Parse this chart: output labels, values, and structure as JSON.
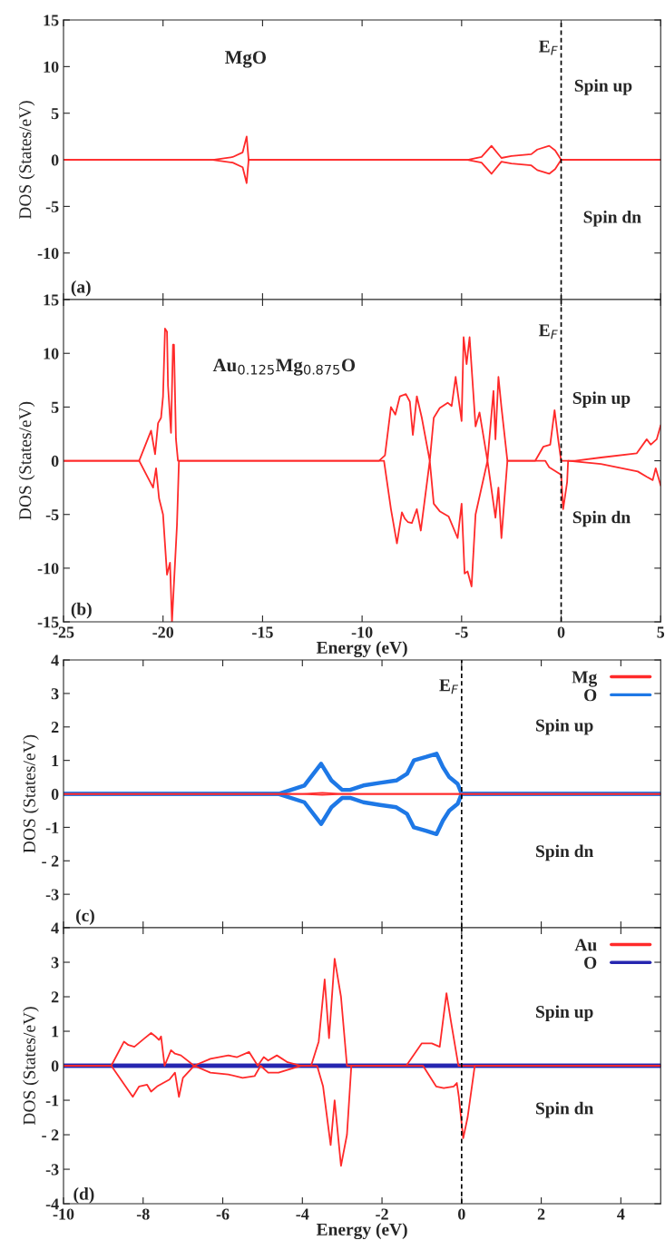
{
  "chart_data": [
    {
      "type": "line",
      "ylabel": "DOS (States/eV)",
      "xlim": [
        -25,
        5
      ],
      "xticks": [
        -25,
        -20,
        -15,
        -10,
        -5,
        0,
        5
      ],
      "ylim": [
        -15,
        15
      ],
      "yticks": [
        15,
        10,
        5,
        0,
        -5,
        -10,
        {
          "value": -15,
          "label": null
        }
      ],
      "tick_labels": "y",
      "grid": false,
      "legend": false,
      "ref_lines": [
        {
          "axis": "x",
          "value": 0,
          "label": "E$_{F}$",
          "color": "#000000",
          "line_style": "dashed"
        }
      ],
      "annotations": [
        "MgO",
        "Spin up",
        "Spin dn",
        "(a)"
      ],
      "series": [
        {
          "color": "#ff2a2a",
          "x": [
            -25,
            -17.5,
            -16.5,
            -16.0,
            -15.8,
            -15.7,
            -4.7,
            -4.0,
            -3.5,
            -3.0,
            -2.5,
            -1.5,
            -1.2,
            -0.6,
            -0.3,
            0,
            5
          ],
          "values": [
            0,
            0,
            0.3,
            0.8,
            2.5,
            0,
            0,
            0.3,
            1.5,
            0.2,
            0.4,
            0.6,
            1.1,
            1.5,
            1.0,
            0,
            0
          ]
        },
        {
          "color": "#ff2a2a",
          "x": [
            -25,
            -17.5,
            -16.5,
            -16.0,
            -15.8,
            -15.7,
            -4.7,
            -4.0,
            -3.5,
            -3.0,
            -2.5,
            -1.5,
            -1.2,
            -0.6,
            -0.3,
            0,
            5
          ],
          "values": [
            0,
            0,
            -0.3,
            -0.8,
            -2.5,
            0,
            0,
            -0.3,
            -1.5,
            -0.2,
            -0.4,
            -0.6,
            -1.1,
            -1.5,
            -1.0,
            0,
            0
          ]
        }
      ]
    },
    {
      "type": "line",
      "xlabel": "Energy (eV)",
      "ylabel": "DOS (States/eV)",
      "xlim": [
        -25,
        5
      ],
      "xticks": [
        -25,
        -20,
        -15,
        -10,
        -5,
        0,
        5
      ],
      "ylim": [
        -15,
        15
      ],
      "yticks": [
        15,
        10,
        5,
        0,
        -5,
        -10,
        -15
      ],
      "grid": false,
      "legend": false,
      "ref_lines": [
        {
          "axis": "x",
          "value": 0,
          "label": "E$_{F}$",
          "color": "#000000",
          "line_style": "dashed"
        }
      ],
      "annotations": [
        "Au$_{0.125}$Mg$_{0.875}$O",
        "Spin up",
        "Spin dn",
        "(b)"
      ],
      "series": [
        {
          "color": "#ff2a2a",
          "x": [
            -25,
            -21.2,
            -20.6,
            -20.4,
            -20.25,
            -20.1,
            -20.0,
            -19.9,
            -19.8,
            -19.75,
            -19.6,
            -19.5,
            -19.45,
            -19.35,
            -19.25,
            -9.15,
            -8.85,
            -8.55,
            -8.33,
            -8.1,
            -7.8,
            -7.6,
            -7.45,
            -7.25,
            -7.0,
            -6.6,
            -6.4,
            -6.1,
            -5.7,
            -5.5,
            -5.3,
            -5.0,
            -4.9,
            -4.75,
            -4.6,
            -4.3,
            -4.1,
            -3.7,
            -3.4,
            -3.3,
            -3.15,
            -3.0,
            -2.7,
            -1.3,
            -0.9,
            -0.55,
            -0.33,
            -0.15,
            0,
            0.7,
            2.0,
            3.8,
            4.3,
            4.5,
            4.8,
            5.0
          ],
          "values": [
            0,
            0,
            2.8,
            0.6,
            3.5,
            4.0,
            6,
            12.3,
            12,
            7,
            2.6,
            10.8,
            10.8,
            2,
            0,
            0,
            0.5,
            5.0,
            4.3,
            6.0,
            6.2,
            5.5,
            2.4,
            6.0,
            4.0,
            0,
            4.0,
            4.9,
            5.4,
            5.1,
            7.8,
            3.7,
            11.5,
            9.0,
            11.5,
            3.2,
            4.5,
            0,
            6.5,
            2.0,
            7.8,
            5.0,
            0,
            0,
            1.3,
            1.5,
            4.7,
            2,
            0,
            0,
            0.3,
            0.7,
            2,
            1.5,
            2,
            3.3
          ]
        },
        {
          "color": "#ff2a2a",
          "x": [
            -25,
            -21.2,
            -20.5,
            -20.35,
            -20.2,
            -20.0,
            -19.8,
            -19.65,
            -19.55,
            -19.3,
            -19.2,
            -8.9,
            -8.55,
            -8.25,
            -8.0,
            -7.85,
            -7.7,
            -7.5,
            -7.25,
            -7.05,
            -6.6,
            -6.4,
            -6.1,
            -5.65,
            -5.2,
            -5.0,
            -4.85,
            -4.7,
            -4.5,
            -4.3,
            -3.7,
            -3.3,
            -3.15,
            -3.0,
            -2.7,
            -0.8,
            -0.6,
            0,
            0.1,
            0.3,
            0.35,
            2.0,
            3.85,
            4.3,
            4.6,
            4.75,
            5.0
          ],
          "values": [
            0,
            0,
            -2.5,
            -0.7,
            -3.5,
            -5,
            -10.6,
            -9.5,
            -15,
            -6,
            0,
            0,
            -4.5,
            -7.7,
            -4.8,
            -5.4,
            -5.7,
            -5.8,
            -4.5,
            -6.5,
            0,
            -4.0,
            -4.7,
            -5.2,
            -7.2,
            -4.0,
            -10.5,
            -10.3,
            -11.7,
            -5.0,
            0,
            -5.3,
            -2.5,
            -7.2,
            0,
            0,
            -0.6,
            -1.3,
            -4.5,
            -2,
            0,
            -0.3,
            -1,
            -1.5,
            -1.8,
            -0.7,
            -2.3
          ]
        }
      ]
    },
    {
      "type": "line",
      "ylabel": "DOS (States/eV)",
      "xlim": [
        -10,
        5
      ],
      "xticks": [
        -10,
        -8,
        -6,
        -4,
        -2,
        0,
        2,
        4
      ],
      "ylim": [
        -4,
        4
      ],
      "yticks": [
        4,
        3,
        2,
        1,
        0,
        -1,
        {
          "value": -2,
          "label": "- 2"
        },
        -3,
        {
          "value": -4,
          "label": null
        }
      ],
      "tick_labels": "y",
      "grid": false,
      "legend": "top right",
      "ref_lines": [
        {
          "axis": "x",
          "value": 0,
          "label": "E$_{F}$",
          "color": "#000000",
          "line_style": "dashed"
        }
      ],
      "annotations": [
        "Spin up",
        "Spin dn",
        "(c)"
      ],
      "series": [
        {
          "name": "Mg",
          "color": "#ff2a2a",
          "x": [
            -10,
            -4.0,
            -3.5,
            -3.0,
            5
          ],
          "values": [
            0,
            0,
            0.03,
            0,
            0
          ]
        },
        {
          "color": "#ff2a2a",
          "x": [
            -10,
            -4.0,
            -3.5,
            -3.0,
            5
          ],
          "values": [
            0,
            0,
            -0.03,
            0,
            0
          ]
        },
        {
          "name": "O",
          "color": "#1e78e6",
          "x": [
            -10,
            -4.6,
            -3.95,
            -3.53,
            -3.27,
            -3.0,
            -2.8,
            -2.47,
            -2.05,
            -1.64,
            -1.37,
            -1.2,
            -0.9,
            -0.63,
            -0.47,
            -0.31,
            -0.1,
            0,
            5
          ],
          "values": [
            0,
            0,
            0.25,
            0.9,
            0.4,
            0.12,
            0.12,
            0.25,
            0.33,
            0.4,
            0.6,
            1.0,
            1.1,
            1.2,
            0.8,
            0.5,
            0.3,
            0,
            0
          ]
        },
        {
          "color": "#1e78e6",
          "x": [
            -10,
            -4.6,
            -3.95,
            -3.53,
            -3.27,
            -3.0,
            -2.8,
            -2.47,
            -2.05,
            -1.64,
            -1.37,
            -1.2,
            -0.9,
            -0.63,
            -0.47,
            -0.31,
            -0.1,
            0,
            5
          ],
          "values": [
            0,
            0,
            -0.25,
            -0.9,
            -0.4,
            -0.12,
            -0.12,
            -0.25,
            -0.33,
            -0.4,
            -0.6,
            -1.0,
            -1.1,
            -1.2,
            -0.8,
            -0.5,
            -0.3,
            0,
            0
          ]
        }
      ]
    },
    {
      "type": "line",
      "xlabel": "Energy (eV)",
      "ylabel": "DOS (States/eV)",
      "xlim": [
        -10,
        5
      ],
      "xticks": [
        -10,
        -8,
        -6,
        -4,
        -2,
        0,
        2,
        4
      ],
      "ylim": [
        -4,
        4
      ],
      "yticks": [
        4,
        3,
        2,
        1,
        0,
        -1,
        {
          "value": -2,
          "label": "- 2"
        },
        -3,
        -4
      ],
      "grid": false,
      "legend": "top right",
      "ref_lines": [
        {
          "axis": "x",
          "value": 0,
          "color": "#000000",
          "line_style": "dashed"
        }
      ],
      "annotations": [
        "Spin up",
        "Spin dn",
        "(d)"
      ],
      "series": [
        {
          "name": "Au",
          "color": "#ff2a2a",
          "x": [
            -10,
            -8.8,
            -8.48,
            -8.37,
            -8.22,
            -7.96,
            -7.8,
            -7.69,
            -7.6,
            -7.55,
            -7.46,
            -7.3,
            -7.2,
            -7.05,
            -6.72,
            -6.31,
            -5.86,
            -5.64,
            -5.34,
            -5.12,
            -4.97,
            -4.86,
            -4.64,
            -4.37,
            -4.04,
            -3.78,
            -3.59,
            -3.44,
            -3.33,
            -3.19,
            -3.03,
            -2.88,
            -1.39,
            -1.0,
            -0.75,
            -0.55,
            -0.38,
            -0.27,
            -0.08,
            5
          ],
          "values": [
            0,
            0,
            0.7,
            0.6,
            0.55,
            0.8,
            0.95,
            0.85,
            0.75,
            0.85,
            0,
            0.45,
            0.35,
            0.3,
            0,
            0.2,
            0.3,
            0.25,
            0.4,
            0,
            0.25,
            0.15,
            0.3,
            0.1,
            0,
            0,
            0.7,
            2.5,
            0.8,
            3.1,
            2.0,
            0,
            0,
            0.65,
            0.65,
            0.55,
            2.1,
            1.3,
            0,
            0
          ]
        },
        {
          "color": "#ff2a2a",
          "x": [
            -10,
            -8.8,
            -8.26,
            -8.1,
            -7.9,
            -7.8,
            -7.65,
            -7.34,
            -7.2,
            -7.1,
            -7.0,
            -6.72,
            -6.31,
            -5.86,
            -5.5,
            -5.2,
            -5.05,
            -4.86,
            -4.6,
            -4.04,
            -3.63,
            -3.48,
            -3.29,
            -3.19,
            -3.03,
            -2.88,
            -2.77,
            -0.97,
            -0.64,
            -0.45,
            -0.2,
            -0.12,
            -0.07,
            0.04,
            0.15,
            0.33,
            5
          ],
          "values": [
            0,
            0,
            -0.9,
            -0.6,
            -0.55,
            -0.75,
            -0.6,
            -0.4,
            -0.2,
            -0.9,
            -0.35,
            0,
            -0.2,
            -0.25,
            -0.35,
            -0.3,
            0,
            -0.2,
            -0.2,
            0,
            0,
            -0.6,
            -2.3,
            -1.0,
            -2.9,
            -2.0,
            0,
            0,
            -0.6,
            -0.65,
            -0.6,
            -0.5,
            -0.9,
            -2.1,
            -1.5,
            0,
            0
          ]
        },
        {
          "name": "O",
          "color": "#2626b0",
          "x": [
            -10,
            5
          ],
          "values": [
            0,
            0
          ]
        },
        {
          "color": "#2626b0",
          "x": [
            -10,
            5
          ],
          "values": [
            0,
            0
          ]
        }
      ]
    }
  ]
}
